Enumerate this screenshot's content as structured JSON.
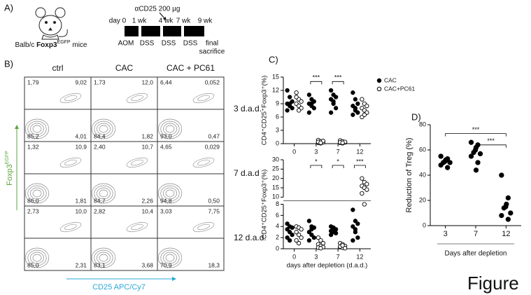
{
  "panel_a": {
    "label": "A)",
    "mouse_label": [
      "Balb/c ",
      "Foxp3",
      "EGFP",
      " mice"
    ],
    "treatment": "αCD25 200 µg",
    "timeline_labels": [
      "day 0",
      "1 wk",
      "4 wk",
      "7 wk",
      "9 wk"
    ],
    "bottom_labels": [
      "AOM",
      "DSS",
      "DSS",
      "DSS"
    ],
    "end_label": [
      "final",
      "sacrifice"
    ]
  },
  "panel_b": {
    "label": "B)",
    "columns": [
      "ctrl",
      "CAC",
      "CAC + PC61"
    ],
    "rows": [
      "3 d.a.d.",
      "7 d.a.d",
      "12 d.a.d."
    ],
    "plots": [
      [
        [
          "1,79",
          "9,02",
          "85,2",
          "4,01"
        ],
        [
          "1,73",
          "12,0",
          "84,4",
          "1,82"
        ],
        [
          "6,44",
          "0,052",
          "93,0",
          "0,47"
        ]
      ],
      [
        [
          "1,32",
          "10,9",
          "86,0",
          "1,81"
        ],
        [
          "2,40",
          "10,7",
          "84,7",
          "2,26"
        ],
        [
          "4,65",
          "0,029",
          "94,8",
          "0,50"
        ]
      ],
      [
        [
          "2,73",
          "10,0",
          "85,0",
          "2,31"
        ],
        [
          "2,82",
          "10,4",
          "83,1",
          "3,68"
        ],
        [
          "3,03",
          "7,75",
          "70,9",
          "18,3"
        ]
      ]
    ],
    "y_axis": [
      "Foxp3",
      "EGFP"
    ],
    "x_axis": "CD25 APC/Cy7"
  },
  "panel_c_label": "C)",
  "panel_d_label": "D)",
  "figure_caption": "Figure",
  "chart_data": [
    {
      "type": "strip",
      "y_label": "CD4⁺CD25⁺Foxp3⁺(%)",
      "categories": [
        "0",
        "3",
        "7",
        "12"
      ],
      "ylim": [
        0,
        15
      ],
      "yticks": [
        0,
        3,
        6,
        9,
        12,
        15
      ],
      "legend": "top-right",
      "series": [
        {
          "name": "CAC",
          "color": "#000000",
          "filled": true,
          "values": [
            [
              12.0,
              10.5,
              9.5,
              9.0,
              8.5,
              8.0,
              7.5,
              9.0
            ],
            [
              11.0,
              10.0,
              9.5,
              9.0,
              8.5,
              8.0,
              7.0,
              9.0
            ],
            [
              12.0,
              11.0,
              10.5,
              10.0,
              9.0,
              8.0,
              7.0,
              9.5
            ],
            [
              11.5,
              10.0,
              9.0,
              8.5,
              8.0,
              7.0,
              6.5,
              7.5
            ]
          ]
        },
        {
          "name": "CAC+PC61",
          "color": "#000000",
          "filled": false,
          "values": [
            [
              11.5,
              10.0,
              9.5,
              9.0,
              8.5,
              8.0,
              10.5,
              7.5
            ],
            [
              0.8,
              0.5,
              0.3,
              0.2,
              0.1,
              0.6,
              0.4,
              0.2
            ],
            [
              0.7,
              0.5,
              0.3,
              0.2,
              0.1,
              0.4,
              0.3,
              0.2
            ],
            [
              10.0,
              9.0,
              8.5,
              8.0,
              7.5,
              7.0,
              6.0,
              6.5
            ]
          ]
        }
      ],
      "annotations": [
        {
          "text": "***",
          "from": 1,
          "to": 1,
          "y": 14
        },
        {
          "text": "***",
          "from": 2,
          "to": 2,
          "y": 14
        }
      ]
    },
    {
      "type": "strip",
      "y_label": "CD4⁺CD25⁺Foxp3⁺(%)",
      "x_label": "days after depletion (d.a.d.)",
      "categories": [
        "0",
        "3",
        "7",
        "12"
      ],
      "ylim": [
        0,
        30
      ],
      "break": [
        8,
        10
      ],
      "yticks": [
        0,
        2,
        4,
        6,
        8,
        10,
        15,
        20,
        25,
        30
      ],
      "series": [
        {
          "name": "CAC",
          "color": "#000000",
          "filled": true,
          "values": [
            [
              4.5,
              4.0,
              3.8,
              3.5,
              3.0,
              2.5,
              2.0,
              1.5
            ],
            [
              5.0,
              4.0,
              3.8,
              3.0,
              2.5,
              2.0,
              1.5,
              3.5
            ],
            [
              4.0,
              3.8,
              3.5,
              3.2,
              3.0,
              2.8,
              2.5,
              3.6
            ],
            [
              7.0,
              5.0,
              4.5,
              4.0,
              3.0,
              2.0,
              1.5,
              3.5
            ]
          ]
        },
        {
          "name": "CAC+PC61",
          "color": "#000000",
          "filled": false,
          "values": [
            [
              4.0,
              3.8,
              3.5,
              3.0,
              2.5,
              2.0,
              1.5,
              1.0
            ],
            [
              2.0,
              1.5,
              1.0,
              0.8,
              0.5,
              0.3,
              0.2,
              0.1
            ],
            [
              1.0,
              0.8,
              0.5,
              0.3,
              0.2,
              0.1,
              0.4,
              0.6
            ],
            [
              20.0,
              18.0,
              17.0,
              16.0,
              15.0,
              14.0,
              12.0,
              8.0
            ]
          ]
        }
      ],
      "annotations": [
        {
          "text": "*",
          "from": 1,
          "to": 1,
          "y": 27
        },
        {
          "text": "*",
          "from": 2,
          "to": 2,
          "y": 27
        },
        {
          "text": "***",
          "from": 3,
          "to": 3,
          "y": 27
        }
      ]
    },
    {
      "type": "strip",
      "y_label": "Reduction of Treg (%)",
      "x_label": "Days after depletion",
      "categories": [
        "3",
        "7",
        "12"
      ],
      "ylim": [
        0,
        80
      ],
      "yticks": [
        0,
        20,
        40,
        60,
        80
      ],
      "series": [
        {
          "color": "#000000",
          "filled": true,
          "values": [
            [
              55,
              53,
              52,
              51,
              50,
              50,
              48,
              46,
              52
            ],
            [
              66,
              64,
              62,
              60,
              58,
              57,
              55,
              50,
              44
            ],
            [
              40,
              22,
              17,
              15,
              14,
              10,
              8,
              5
            ]
          ]
        }
      ],
      "annotations": [
        {
          "text": "***",
          "from": 0,
          "to": 2,
          "y": 73
        },
        {
          "text": "***",
          "from": 1,
          "to": 2,
          "y": 64
        }
      ]
    }
  ]
}
